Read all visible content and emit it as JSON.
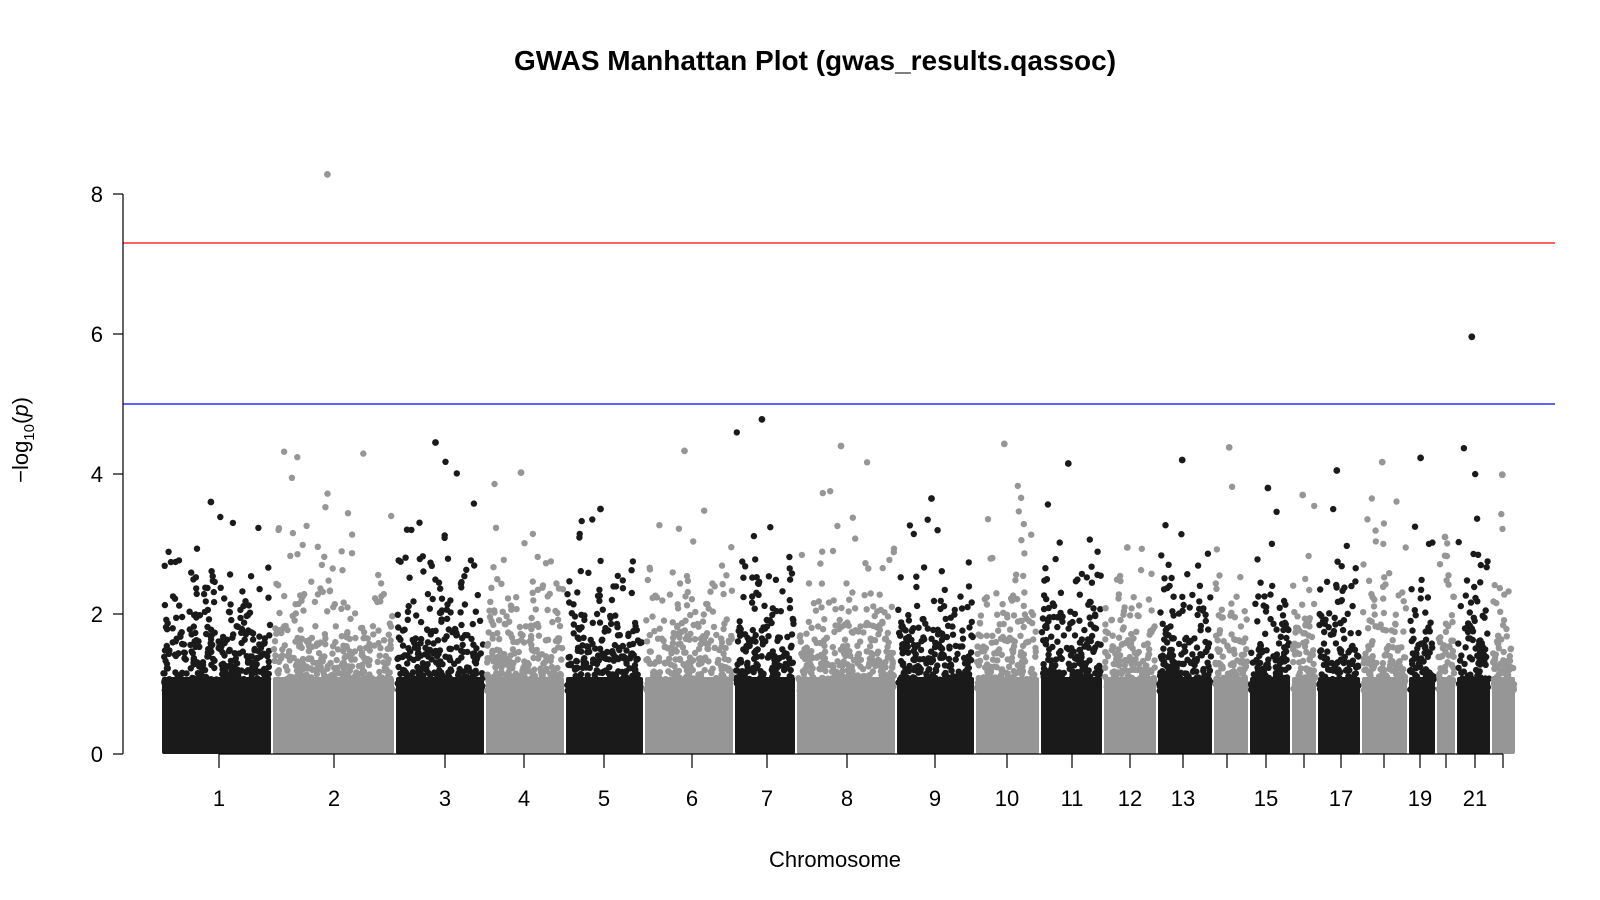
{
  "chart_data": {
    "type": "scatter",
    "title": "GWAS Manhattan Plot (gwas_results.qassoc)",
    "xlabel": "Chromosome",
    "ylabel_prefix": "−log",
    "ylabel_sub": "10",
    "ylabel_paren_open": "(",
    "ylabel_var": "p",
    "ylabel_paren_close": ")",
    "ylim": [
      0,
      8.3
    ],
    "yticks": [
      0,
      2,
      4,
      6,
      8
    ],
    "thresholds": [
      {
        "value": 7.3,
        "color": "#ff0000"
      },
      {
        "value": 5.0,
        "color": "#0000ff"
      }
    ],
    "series_colors": [
      "#1a1a1a",
      "#969696"
    ],
    "chromosomes": [
      {
        "chr": 1,
        "label": "1",
        "max": 3.6
      },
      {
        "chr": 2,
        "label": "2",
        "max": 8.28
      },
      {
        "chr": 3,
        "label": "3",
        "max": 4.45
      },
      {
        "chr": 4,
        "label": "4",
        "max": 4.02
      },
      {
        "chr": 5,
        "label": "5",
        "max": 3.5
      },
      {
        "chr": 6,
        "label": "6",
        "max": 4.33
      },
      {
        "chr": 7,
        "label": "7",
        "max": 4.78
      },
      {
        "chr": 8,
        "label": "8",
        "max": 4.4
      },
      {
        "chr": 9,
        "label": "9",
        "max": 3.65
      },
      {
        "chr": 10,
        "label": "10",
        "max": 4.43
      },
      {
        "chr": 11,
        "label": "11",
        "max": 4.15
      },
      {
        "chr": 12,
        "label": "12",
        "max": 2.95
      },
      {
        "chr": 13,
        "label": "13",
        "max": 4.2
      },
      {
        "chr": 14,
        "label": "",
        "max": 4.38
      },
      {
        "chr": 15,
        "label": "15",
        "max": 3.8
      },
      {
        "chr": 16,
        "label": "",
        "max": 3.7
      },
      {
        "chr": 17,
        "label": "17",
        "max": 4.05
      },
      {
        "chr": 18,
        "label": "",
        "max": 4.17
      },
      {
        "chr": 19,
        "label": "19",
        "max": 4.23
      },
      {
        "chr": 20,
        "label": "",
        "max": 3.1
      },
      {
        "chr": 21,
        "label": "21",
        "max": 5.96
      },
      {
        "chr": 22,
        "label": "",
        "max": 3.99
      }
    ],
    "highlights": [
      {
        "chr": 2,
        "y": 8.28
      },
      {
        "chr": 21,
        "y": 5.96
      },
      {
        "chr": 7,
        "y": 4.78
      }
    ]
  }
}
